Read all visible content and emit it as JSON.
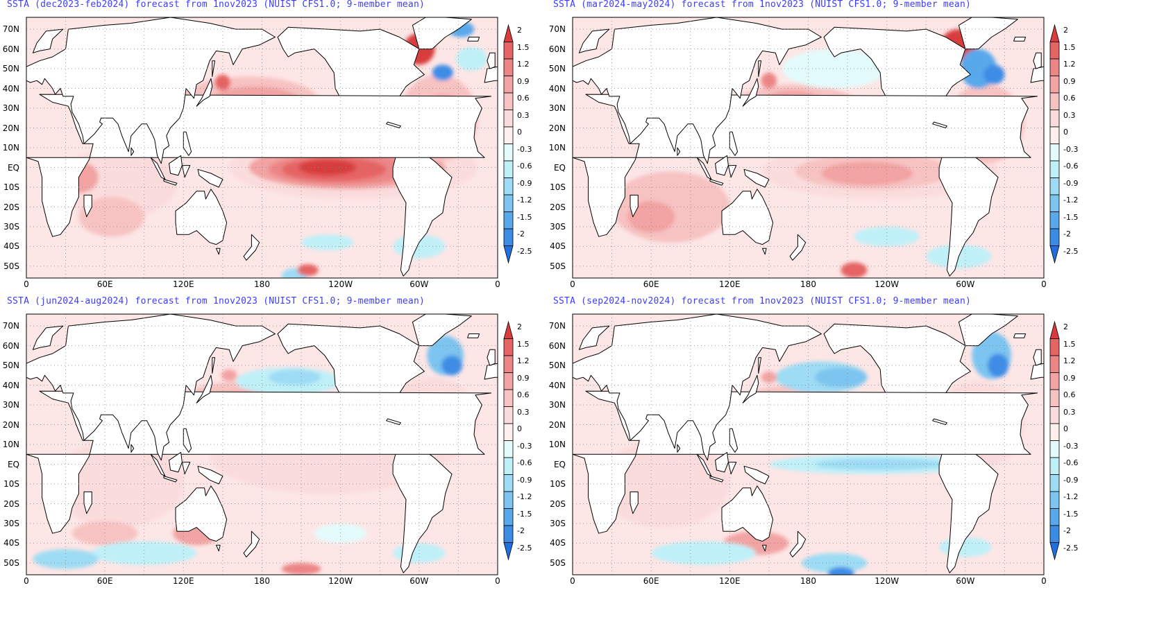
{
  "panels": [
    {
      "title": "SSTA (dec2023-feb2024) forecast from 1nov2023 (NUIST CFS1.0; 9-member mean)",
      "pattern": "strong_el_nino"
    },
    {
      "title": "SSTA (mar2024-may2024) forecast from 1nov2023 (NUIST CFS1.0; 9-member mean)",
      "pattern": "weakening_el_nino"
    },
    {
      "title": "SSTA (jun2024-aug2024) forecast from 1nov2023 (NUIST CFS1.0; 9-member mean)",
      "pattern": "neutral"
    },
    {
      "title": "SSTA (sep2024-nov2024) forecast from 1nov2023 (NUIST CFS1.0; 9-member mean)",
      "pattern": "weak_la_nina"
    }
  ],
  "lat_labels": [
    "70N",
    "60N",
    "50N",
    "40N",
    "30N",
    "20N",
    "10N",
    "EQ",
    "10S",
    "20S",
    "30S",
    "40S",
    "50S"
  ],
  "lon_labels": [
    "0",
    "60E",
    "120E",
    "180",
    "120W",
    "60W",
    "0"
  ],
  "colorbar": {
    "labels": [
      "2",
      "1.5",
      "1.2",
      "0.9",
      "0.6",
      "0.3",
      "0",
      "-0.3",
      "-0.6",
      "-0.9",
      "-1.2",
      "-1.5",
      "-2",
      "-2.5"
    ],
    "colors": [
      "#d83c3c",
      "#e66464",
      "#ec8686",
      "#f2a3a3",
      "#f7c2c2",
      "#fbdcdc",
      "#fff0f0",
      "#e4fbfb",
      "#bff0f8",
      "#9ddcf4",
      "#7dc4f0",
      "#58a8ec",
      "#3c8ce6",
      "#2070e0"
    ]
  },
  "map_colors": {
    "ocean_neutral": "#fde6e6",
    "land": "#ffffff",
    "coast": "#000000",
    "grid_dots": "#888888"
  }
}
